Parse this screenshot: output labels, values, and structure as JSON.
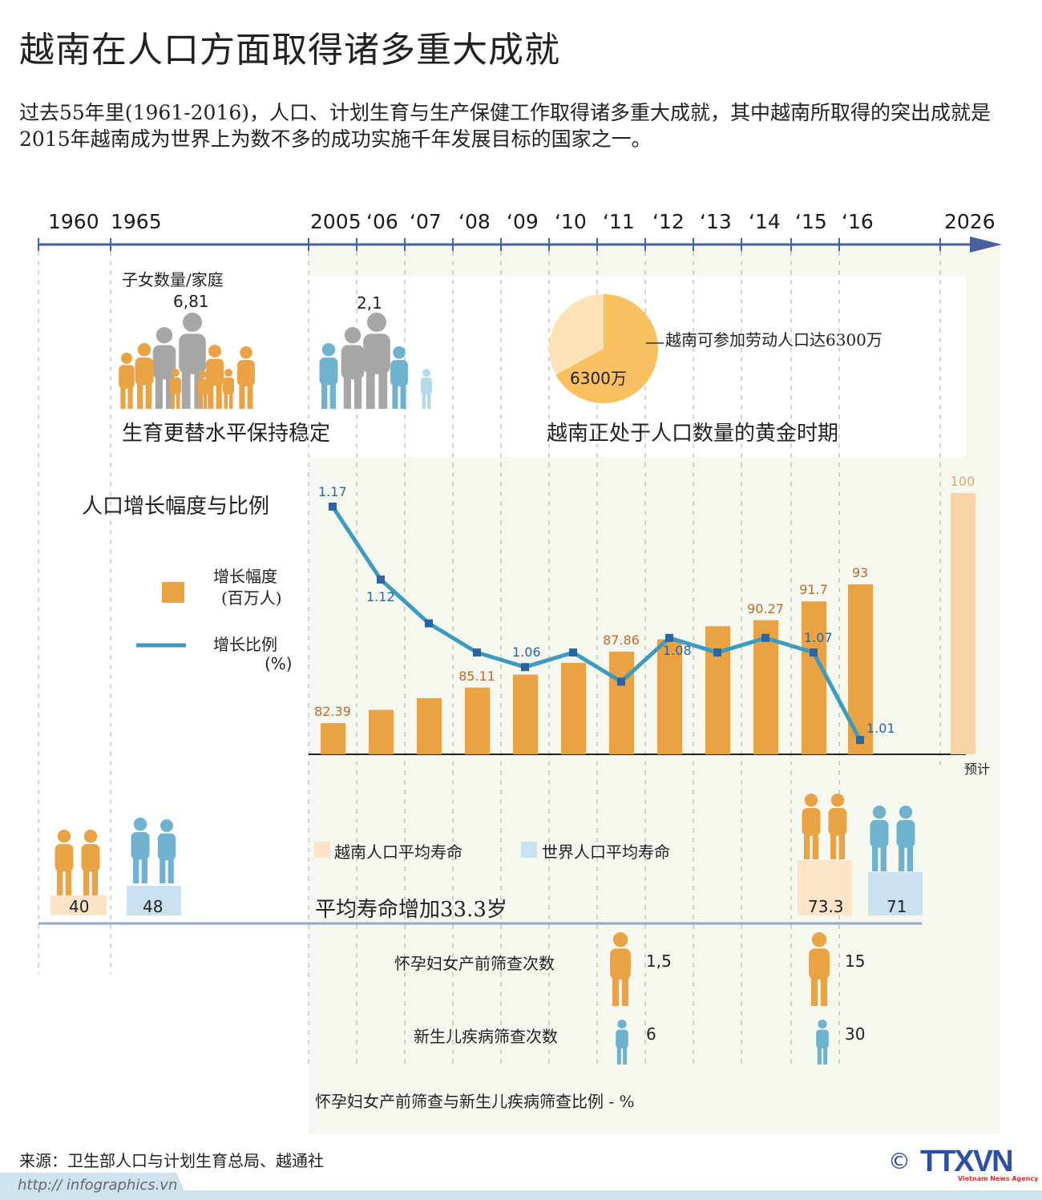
{
  "title": "越南在人口方面取得诸多重大成就",
  "intro": "过去55年里(1961-2016)，人口、计划生育与生产保健工作取得诸多重大成就，其中越南所取得的突出成就是2015年越南成为世界上为数不多的成功实施千年发展目标的国家之一。",
  "timeline": {
    "labels": [
      "1960",
      "1965",
      "2005",
      "‘06",
      "‘07",
      "‘08",
      "‘09",
      "‘10",
      "‘11",
      "‘12",
      "‘13",
      "‘14",
      "‘15",
      "‘16",
      "2026"
    ]
  },
  "children": {
    "heading": "子女数量/家庭",
    "before": "6,81",
    "after": "2,1",
    "caption": "生育更替水平保持稳定"
  },
  "labor": {
    "pie_label": "6300万",
    "pie_share": 0.67,
    "callout": "越南可参加劳动人口达6300万",
    "caption": "越南正处于人口数量的黄金时期"
  },
  "chart_data": {
    "type": "bar",
    "title": "人口增长幅度与比例",
    "categories": [
      "2005",
      "2006",
      "2007",
      "2008",
      "2009",
      "2010",
      "2011",
      "2012",
      "2013",
      "2014",
      "2015",
      "2016",
      "2026"
    ],
    "series": [
      {
        "name": "增长幅度 (百万人)",
        "type": "bar",
        "values": [
          82.39,
          83.4,
          84.3,
          85.11,
          86.1,
          87.0,
          87.86,
          88.8,
          89.8,
          90.27,
          91.7,
          93,
          100
        ],
        "labels": [
          "82.39",
          "",
          "",
          "85.11",
          "",
          "",
          "87.86",
          "",
          "",
          "90.27",
          "91.7",
          "93",
          "100"
        ],
        "color": "#e9a244",
        "forecast_color": "#f7d3a6"
      },
      {
        "name": "增长比例 (%)",
        "type": "line",
        "values": [
          1.17,
          1.12,
          1.09,
          1.07,
          1.06,
          1.07,
          1.05,
          1.08,
          1.07,
          1.08,
          1.07,
          1.01,
          null
        ],
        "labels": [
          "1.17",
          "1.12",
          "",
          "",
          "1.06",
          "",
          "",
          "1.08",
          "",
          "",
          "1.07",
          "1.01",
          ""
        ],
        "color": "#3e9bbf",
        "marker_color": "#2b64a0"
      }
    ],
    "legend": {
      "bar_label": "增长幅度",
      "bar_unit": "(百万人)",
      "line_label": "增长比例",
      "line_unit": "(%)",
      "placement": "left"
    },
    "forecast_note": "预计",
    "grid": "dashed vertical"
  },
  "life": {
    "legend_vn": "越南人口平均寿命",
    "legend_world": "世界人口平均寿命",
    "caption": "平均寿命增加33.3岁",
    "vn_1960": "40",
    "world_1960": "48",
    "vn_2015": "73.3",
    "world_2015": "71",
    "color_vn": "#fde3c8",
    "color_world": "#c9e0ee"
  },
  "screening": {
    "prenatal_label": "怀孕妇女产前筛查次数",
    "prenatal_before": "1,5",
    "prenatal_after": "15",
    "newborn_label": "新生儿疾病筛查次数",
    "newborn_before": "6",
    "newborn_after": "30",
    "caption": "怀孕妇女产前筛查与新生儿疾病筛查比例 - %"
  },
  "footer": {
    "source": "来源：卫生部人口与计划生育总局、越通社",
    "url": "http:// infographics.vn",
    "logo": "TTXVN",
    "logo_sub": "Vietnam News Agency",
    "copyright": "©"
  }
}
